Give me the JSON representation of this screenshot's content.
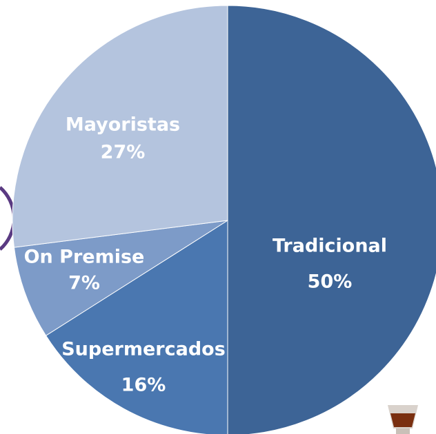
{
  "chart_data": {
    "type": "pie",
    "categories": [
      "Tradicional",
      "Supermercados",
      "On Premise",
      "Mayoristas"
    ],
    "values": [
      50,
      16,
      7,
      27
    ],
    "value_labels": [
      "50%",
      "16%",
      "7%",
      "27%"
    ],
    "colors": [
      "#3d6496",
      "#4a77b0",
      "#7d9bc8",
      "#b4c4de"
    ]
  }
}
